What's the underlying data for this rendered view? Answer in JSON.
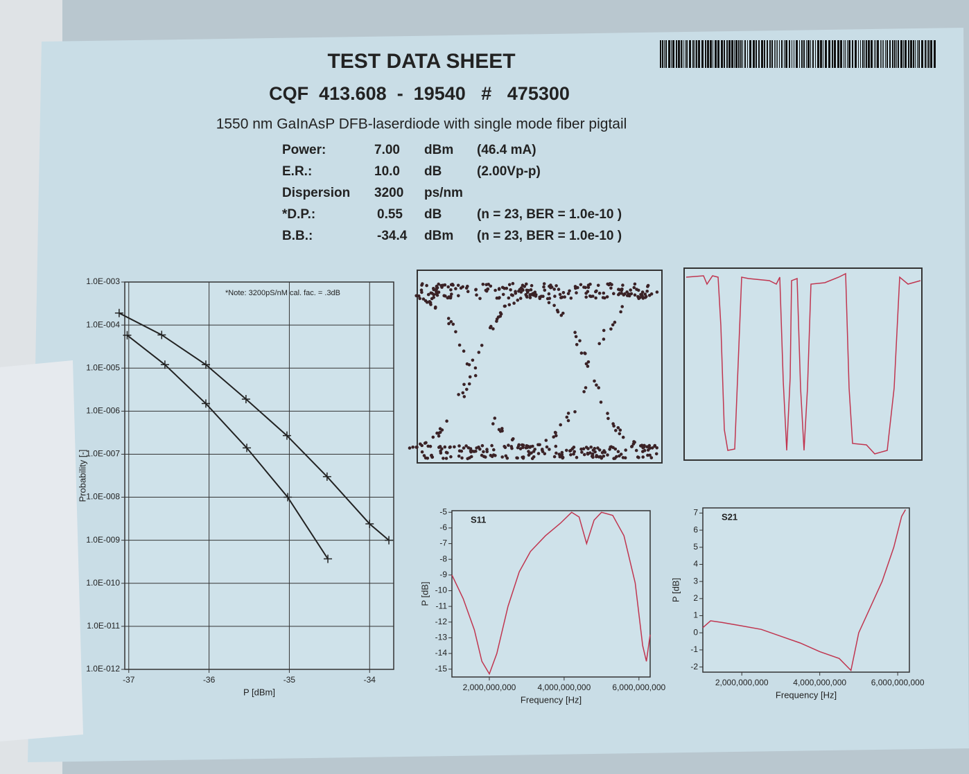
{
  "header": {
    "title": "TEST DATA SHEET",
    "part": "CQF  413.608  -  19540   #   475300",
    "subtitle": "1550 nm GaInAsP DFB-laserdiode with single mode fiber pigtail"
  },
  "parameters": [
    [
      "Power:",
      "7.00",
      "dBm",
      "(46.4 mA)"
    ],
    [
      "E.R.:",
      "10.0",
      "dB",
      "(2.00Vp-p)"
    ],
    [
      "Dispersion",
      "3200",
      "ps/nm",
      ""
    ],
    [
      "*D.P.:",
      "0.55",
      "dB",
      "(n = 23,  BER = 1.0e-10 )"
    ],
    [
      "B.B.:",
      "-34.4",
      "dBm",
      "(n = 23,  BER = 1.0e-10 )"
    ]
  ],
  "chart_data": [
    {
      "type": "line",
      "note": "*Note: 3200pS/nM cal. fac. = .3dB",
      "x_label": "P [dBm]",
      "y_label": "Probability [-]",
      "log_y": true,
      "grid": true,
      "markers": true,
      "xlim": [
        -37.05,
        -33.7
      ],
      "xticks": [
        -37,
        -36,
        -35,
        -34
      ],
      "ylim": [
        1e-12,
        0.001
      ],
      "yticks": [
        {
          "value": 0.001,
          "label": "1.0E-003"
        },
        {
          "value": 0.0001,
          "label": "1.0E-004"
        },
        {
          "value": 1e-05,
          "label": "1.0E-005"
        },
        {
          "value": 1e-06,
          "label": "1.0E-006"
        },
        {
          "value": 1e-07,
          "label": "1.0E-007"
        },
        {
          "value": 1e-08,
          "label": "1.0E-008"
        },
        {
          "value": 1e-09,
          "label": "1.0E-009"
        },
        {
          "value": 1e-10,
          "label": "1.0E-010"
        },
        {
          "value": 1e-11,
          "label": "1.0E-011"
        },
        {
          "value": 1e-12,
          "label": "1.0E-012"
        }
      ],
      "series": [
        {
          "color": "#222222",
          "x": [
            -37.02,
            -36.55,
            -36.04,
            -35.53,
            -35.02,
            -34.52
          ],
          "values": [
            5.8e-05,
            1.2e-05,
            1.5e-06,
            1.4e-07,
            1e-08,
            3.7e-10
          ]
        },
        {
          "color": "#222222",
          "x": [
            -37.12,
            -36.59,
            -36.04,
            -35.54,
            -35.03,
            -34.53,
            -34.0,
            -33.76
          ],
          "values": [
            0.00019,
            5.9e-05,
            1.2e-05,
            1.9e-06,
            2.7e-07,
            3e-08,
            2.4e-09,
            1e-09
          ]
        }
      ]
    },
    {
      "type": "line",
      "title": "S11",
      "x_label": "Frequency [Hz]",
      "y_label": "P [dB]",
      "grid": false,
      "markers": false,
      "xlim": [
        1000000000,
        6300000000
      ],
      "xticks": [
        {
          "value": 2000000000,
          "label": "2,000,000,000"
        },
        {
          "value": 4000000000,
          "label": "4,000,000,000"
        },
        {
          "value": 6000000000,
          "label": "6,000,000,000"
        }
      ],
      "ylim": [
        -15.5,
        -4.9
      ],
      "yticks": [
        -5,
        -6,
        -7,
        -8,
        -9,
        -10,
        -11,
        -12,
        -13,
        -14,
        -15
      ],
      "series": [
        {
          "color": "#c0354f",
          "x": [
            1000000000,
            1300000000,
            1600000000,
            1800000000,
            2000000000,
            2200000000,
            2500000000,
            2800000000,
            3100000000,
            3500000000,
            3900000000,
            4200000000,
            4400000000,
            4600000000,
            4800000000,
            5000000000,
            5300000000,
            5600000000,
            5900000000,
            6100000000,
            6200000000,
            6300000000
          ],
          "values": [
            -9.0,
            -10.5,
            -12.5,
            -14.5,
            -15.3,
            -14.0,
            -11.0,
            -8.8,
            -7.5,
            -6.5,
            -5.7,
            -5.0,
            -5.3,
            -7.0,
            -5.5,
            -5.0,
            -5.2,
            -6.5,
            -9.5,
            -13.5,
            -14.5,
            -12.8
          ]
        }
      ]
    },
    {
      "type": "line",
      "title": "S21",
      "x_label": "Frequency [Hz]",
      "y_label": "P [dB]",
      "grid": false,
      "markers": false,
      "xlim": [
        1000000000,
        6300000000
      ],
      "xticks": [
        {
          "value": 2000000000,
          "label": "2,000,000,000"
        },
        {
          "value": 4000000000,
          "label": "4,000,000,000"
        },
        {
          "value": 6000000000,
          "label": "6,000,000,000"
        }
      ],
      "ylim": [
        -2.3,
        7.3
      ],
      "yticks": [
        7,
        6,
        5,
        4,
        3,
        2,
        1,
        0,
        -1,
        -2
      ],
      "series": [
        {
          "color": "#c0354f",
          "x": [
            1000000000,
            1200000000,
            1500000000,
            2000000000,
            2500000000,
            3000000000,
            3500000000,
            4000000000,
            4500000000,
            4800000000,
            5000000000,
            5300000000,
            5600000000,
            5900000000,
            6100000000,
            6200000000
          ],
          "values": [
            0.3,
            0.7,
            0.6,
            0.4,
            0.2,
            -0.2,
            -0.6,
            -1.1,
            -1.5,
            -2.2,
            0,
            1.5,
            3.0,
            5.0,
            6.8,
            7.2
          ]
        }
      ]
    }
  ]
}
